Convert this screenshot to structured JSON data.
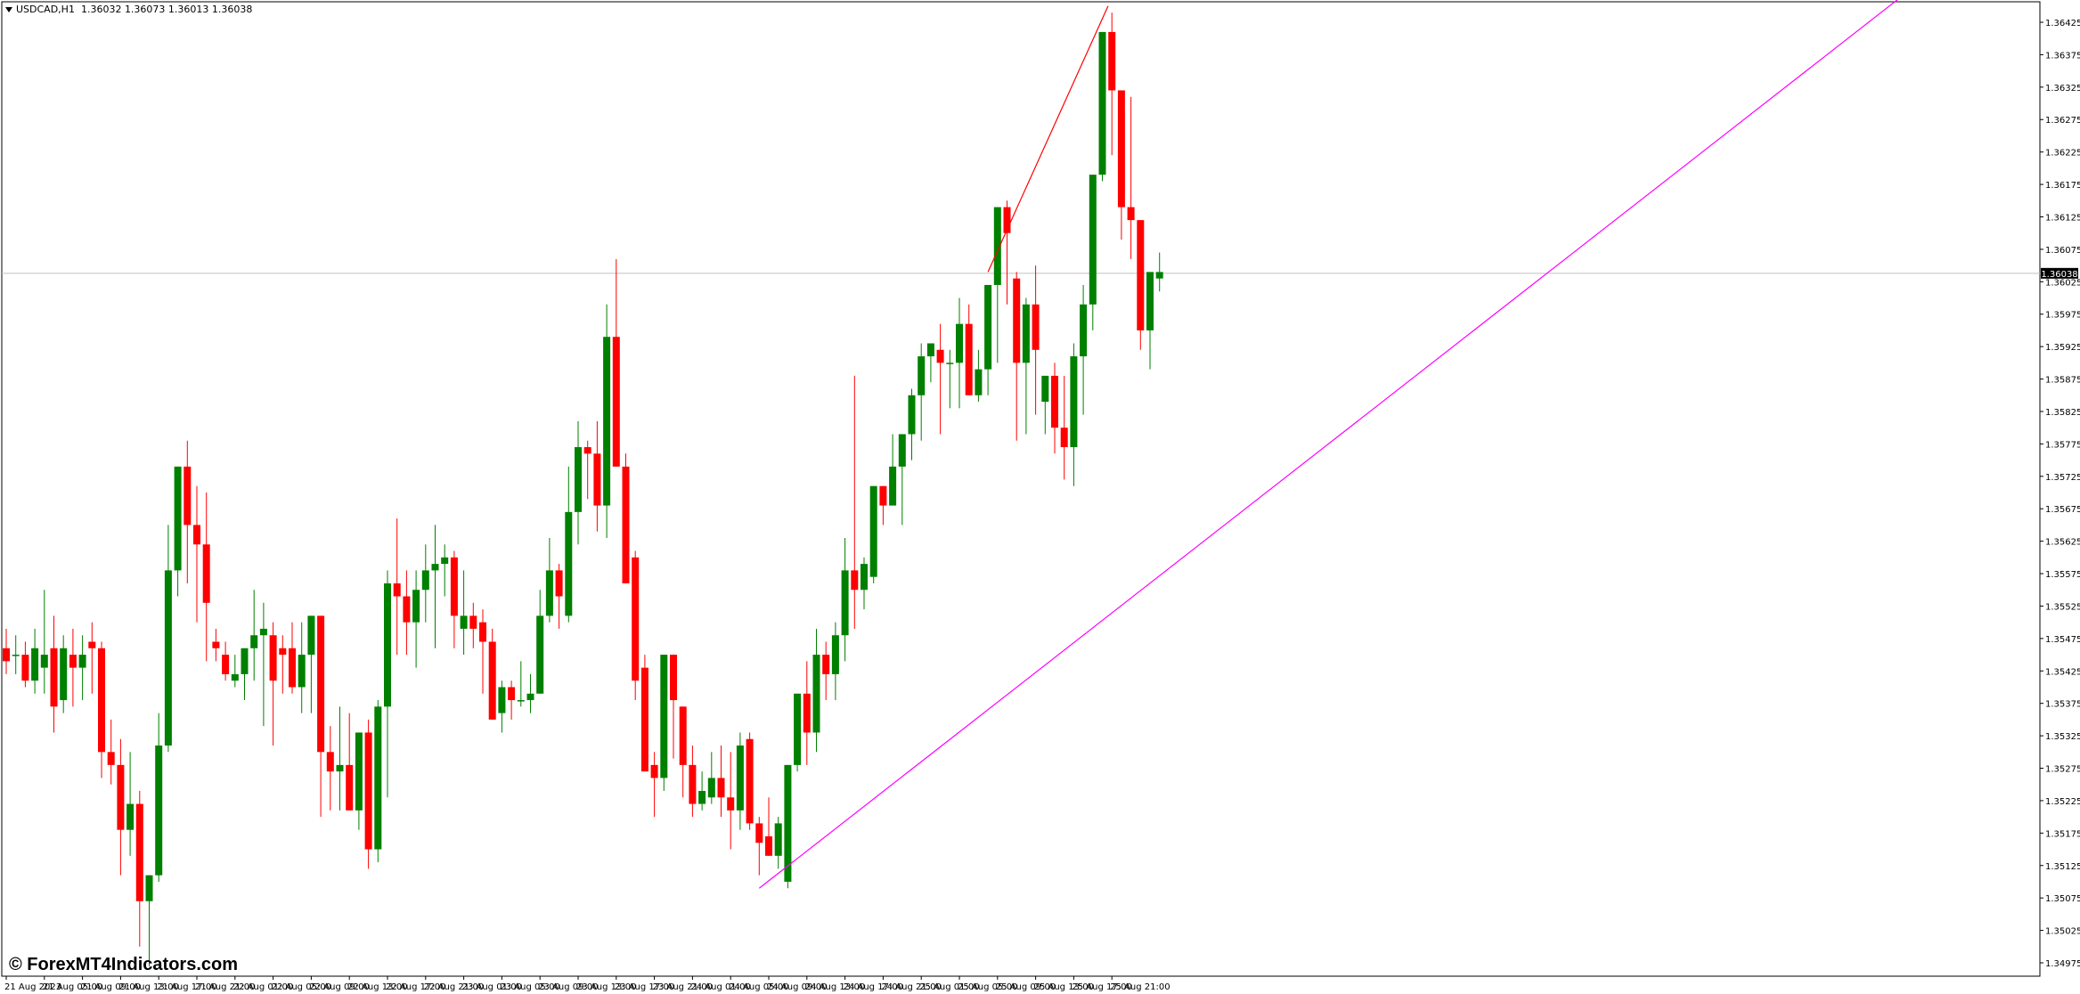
{
  "header": {
    "symbol_timeframe": "USDCAD,H1",
    "ohlc": "1.36032 1.36073 1.36013 1.36038"
  },
  "watermark": "© ForexMT4Indicators.com",
  "current_price_label": "1.36038",
  "colors": {
    "bull": "#008000",
    "bear": "#ff0000",
    "trendline_support": "#ff00ff",
    "trendline_steep": "#ff0000",
    "price_line": "#c0c0c0",
    "grid": "#000000",
    "background": "#ffffff"
  },
  "chart_data": {
    "type": "candlestick",
    "symbol": "USDCAD",
    "timeframe": "H1",
    "ylim": [
      1.3495,
      1.3645
    ],
    "y_ticks": [
      "1.36425",
      "1.36375",
      "1.36325",
      "1.36275",
      "1.36225",
      "1.36175",
      "1.36125",
      "1.36075",
      "1.36025",
      "1.35975",
      "1.35925",
      "1.35875",
      "1.35825",
      "1.35775",
      "1.35725",
      "1.35675",
      "1.35625",
      "1.35575",
      "1.35525",
      "1.35475",
      "1.35425",
      "1.35375",
      "1.35325",
      "1.35275",
      "1.35225",
      "1.35175",
      "1.35125",
      "1.35075",
      "1.35025",
      "1.34975"
    ],
    "x_ticks": [
      "21 Aug 2023",
      "21 Aug 05:00",
      "21 Aug 09:00",
      "21 Aug 13:00",
      "21 Aug 17:00",
      "21 Aug 21:00",
      "22 Aug 01:00",
      "22 Aug 05:00",
      "22 Aug 09:00",
      "22 Aug 13:00",
      "22 Aug 17:00",
      "22 Aug 21:00",
      "23 Aug 01:00",
      "23 Aug 05:00",
      "23 Aug 09:00",
      "23 Aug 13:00",
      "23 Aug 17:00",
      "23 Aug 21:00",
      "24 Aug 01:00",
      "24 Aug 05:00",
      "24 Aug 09:00",
      "24 Aug 13:00",
      "24 Aug 17:00",
      "24 Aug 21:00",
      "25 Aug 01:00",
      "25 Aug 05:00",
      "25 Aug 09:00",
      "25 Aug 13:00",
      "25 Aug 17:00",
      "25 Aug 21:00"
    ],
    "x_tick_candle_index": [
      0,
      4,
      8,
      12,
      16,
      20,
      24,
      28,
      32,
      36,
      40,
      44,
      48,
      52,
      56,
      60,
      64,
      68,
      72,
      76,
      80,
      84,
      88,
      92,
      96,
      100,
      104,
      108,
      112,
      116
    ],
    "current_price": 1.36038,
    "candles_ohlc": [
      [
        1.3546,
        1.3549,
        1.3542,
        1.3544
      ],
      [
        1.3545,
        1.3548,
        1.3542,
        1.3545
      ],
      [
        1.3545,
        1.3547,
        1.354,
        1.3541
      ],
      [
        1.3541,
        1.3549,
        1.3539,
        1.3546
      ],
      [
        1.3543,
        1.3555,
        1.3539,
        1.3545
      ],
      [
        1.3546,
        1.3551,
        1.3533,
        1.3537
      ],
      [
        1.3538,
        1.3548,
        1.3536,
        1.3546
      ],
      [
        1.3545,
        1.3549,
        1.3537,
        1.3543
      ],
      [
        1.3543,
        1.3548,
        1.3538,
        1.3545
      ],
      [
        1.3547,
        1.355,
        1.3539,
        1.3546
      ],
      [
        1.3546,
        1.3547,
        1.3526,
        1.353
      ],
      [
        1.353,
        1.3535,
        1.3525,
        1.3528
      ],
      [
        1.3528,
        1.3532,
        1.3511,
        1.3518
      ],
      [
        1.3518,
        1.353,
        1.3514,
        1.3522
      ],
      [
        1.3522,
        1.3524,
        1.35,
        1.3507
      ],
      [
        1.3507,
        1.3511,
        1.3497,
        1.3511
      ],
      [
        1.3511,
        1.3536,
        1.351,
        1.3531
      ],
      [
        1.3531,
        1.3565,
        1.353,
        1.3558
      ],
      [
        1.3558,
        1.3573,
        1.3554,
        1.3574
      ],
      [
        1.3574,
        1.3578,
        1.3556,
        1.3565
      ],
      [
        1.3565,
        1.3571,
        1.355,
        1.3562
      ],
      [
        1.3562,
        1.357,
        1.3544,
        1.3553
      ],
      [
        1.3547,
        1.3549,
        1.3544,
        1.3546
      ],
      [
        1.3545,
        1.3547,
        1.3541,
        1.3542
      ],
      [
        1.3541,
        1.3545,
        1.354,
        1.3542
      ],
      [
        1.3542,
        1.3545,
        1.3538,
        1.3546
      ],
      [
        1.3546,
        1.3555,
        1.3541,
        1.3548
      ],
      [
        1.3548,
        1.3553,
        1.3534,
        1.3549
      ],
      [
        1.3548,
        1.355,
        1.3531,
        1.3541
      ],
      [
        1.3546,
        1.3548,
        1.3539,
        1.3545
      ],
      [
        1.3546,
        1.355,
        1.3539,
        1.354
      ],
      [
        1.354,
        1.355,
        1.3536,
        1.3545
      ],
      [
        1.3545,
        1.3551,
        1.3536,
        1.3551
      ],
      [
        1.3551,
        1.3551,
        1.352,
        1.353
      ],
      [
        1.353,
        1.3534,
        1.3521,
        1.3527
      ],
      [
        1.3527,
        1.3537,
        1.3521,
        1.3528
      ],
      [
        1.3528,
        1.3536,
        1.3521,
        1.3521
      ],
      [
        1.3521,
        1.3533,
        1.3518,
        1.3533
      ],
      [
        1.3533,
        1.3535,
        1.3512,
        1.3515
      ],
      [
        1.3515,
        1.3538,
        1.3513,
        1.3537
      ],
      [
        1.3537,
        1.3558,
        1.3523,
        1.3556
      ],
      [
        1.3556,
        1.3566,
        1.3545,
        1.3554
      ],
      [
        1.3554,
        1.3558,
        1.3545,
        1.355
      ],
      [
        1.355,
        1.3558,
        1.3543,
        1.3555
      ],
      [
        1.3555,
        1.3562,
        1.355,
        1.3558
      ],
      [
        1.3558,
        1.3565,
        1.3546,
        1.3559
      ],
      [
        1.3559,
        1.3562,
        1.3554,
        1.356
      ],
      [
        1.356,
        1.3561,
        1.3546,
        1.3551
      ],
      [
        1.3549,
        1.3558,
        1.3545,
        1.3551
      ],
      [
        1.3551,
        1.3553,
        1.3546,
        1.3549
      ],
      [
        1.355,
        1.3552,
        1.3539,
        1.3547
      ],
      [
        1.3547,
        1.3549,
        1.3535,
        1.3535
      ],
      [
        1.3536,
        1.3541,
        1.3533,
        1.354
      ],
      [
        1.354,
        1.3541,
        1.3535,
        1.3538
      ],
      [
        1.3538,
        1.3544,
        1.3537,
        1.3538
      ],
      [
        1.3538,
        1.3542,
        1.3536,
        1.3539
      ],
      [
        1.3539,
        1.3555,
        1.3539,
        1.3551
      ],
      [
        1.3551,
        1.3563,
        1.355,
        1.3558
      ],
      [
        1.3558,
        1.3559,
        1.3549,
        1.3554
      ],
      [
        1.3551,
        1.3574,
        1.355,
        1.3567
      ],
      [
        1.3567,
        1.3581,
        1.3562,
        1.3577
      ],
      [
        1.3577,
        1.3578,
        1.3569,
        1.3576
      ],
      [
        1.3576,
        1.3581,
        1.3564,
        1.3568
      ],
      [
        1.3568,
        1.3599,
        1.3563,
        1.3594
      ],
      [
        1.3594,
        1.3606,
        1.3586,
        1.3574
      ],
      [
        1.3574,
        1.3576,
        1.3556,
        1.3556
      ],
      [
        1.356,
        1.3561,
        1.3538,
        1.3541
      ],
      [
        1.3543,
        1.3545,
        1.3527,
        1.3527
      ],
      [
        1.3528,
        1.353,
        1.352,
        1.3526
      ],
      [
        1.3526,
        1.3544,
        1.3524,
        1.3545
      ],
      [
        1.3545,
        1.3545,
        1.3529,
        1.3538
      ],
      [
        1.3537,
        1.3537,
        1.3523,
        1.3528
      ],
      [
        1.3528,
        1.3531,
        1.352,
        1.3522
      ],
      [
        1.3522,
        1.3527,
        1.3521,
        1.3524
      ],
      [
        1.3523,
        1.353,
        1.3522,
        1.3526
      ],
      [
        1.3526,
        1.3531,
        1.352,
        1.3523
      ],
      [
        1.3523,
        1.353,
        1.3515,
        1.3521
      ],
      [
        1.3521,
        1.3533,
        1.3518,
        1.3531
      ],
      [
        1.3532,
        1.3533,
        1.3518,
        1.3519
      ],
      [
        1.3519,
        1.352,
        1.3511,
        1.3516
      ],
      [
        1.3517,
        1.3523,
        1.3514,
        1.3514
      ],
      [
        1.3514,
        1.352,
        1.3512,
        1.3519
      ],
      [
        1.351,
        1.3528,
        1.3509,
        1.3528
      ],
      [
        1.3528,
        1.3539,
        1.3527,
        1.3539
      ],
      [
        1.3539,
        1.3544,
        1.3528,
        1.3533
      ],
      [
        1.3533,
        1.3549,
        1.353,
        1.3545
      ],
      [
        1.3545,
        1.3547,
        1.3538,
        1.3542
      ],
      [
        1.3542,
        1.355,
        1.3538,
        1.3548
      ],
      [
        1.3548,
        1.3563,
        1.3544,
        1.3558
      ],
      [
        1.3558,
        1.3588,
        1.3549,
        1.3555
      ],
      [
        1.3555,
        1.356,
        1.3552,
        1.3559
      ],
      [
        1.3557,
        1.3569,
        1.3556,
        1.3571
      ],
      [
        1.3571,
        1.3571,
        1.3565,
        1.3568
      ],
      [
        1.3568,
        1.3579,
        1.3568,
        1.3574
      ],
      [
        1.3574,
        1.3578,
        1.3565,
        1.3579
      ],
      [
        1.3579,
        1.3586,
        1.3575,
        1.3585
      ],
      [
        1.3585,
        1.3593,
        1.3578,
        1.3591
      ],
      [
        1.3591,
        1.3593,
        1.3587,
        1.3593
      ],
      [
        1.3592,
        1.3596,
        1.3579,
        1.359
      ],
      [
        1.359,
        1.3592,
        1.3583,
        1.359
      ],
      [
        1.359,
        1.36,
        1.3583,
        1.3596
      ],
      [
        1.3596,
        1.3599,
        1.3586,
        1.3585
      ],
      [
        1.3585,
        1.3592,
        1.3584,
        1.3589
      ],
      [
        1.3589,
        1.3602,
        1.3585,
        1.3602
      ],
      [
        1.3602,
        1.3606,
        1.359,
        1.3614
      ],
      [
        1.3614,
        1.3615,
        1.3599,
        1.361
      ],
      [
        1.3603,
        1.3604,
        1.3578,
        1.359
      ],
      [
        1.359,
        1.36,
        1.3579,
        1.3599
      ],
      [
        1.3599,
        1.3605,
        1.3582,
        1.3592
      ],
      [
        1.3584,
        1.3587,
        1.3579,
        1.3588
      ],
      [
        1.3588,
        1.359,
        1.3576,
        1.358
      ],
      [
        1.358,
        1.3588,
        1.3572,
        1.3577
      ],
      [
        1.3577,
        1.3593,
        1.3571,
        1.3591
      ],
      [
        1.3591,
        1.3602,
        1.3582,
        1.3599
      ],
      [
        1.3599,
        1.3615,
        1.3595,
        1.3619
      ],
      [
        1.3619,
        1.364,
        1.3618,
        1.3641
      ],
      [
        1.3641,
        1.3644,
        1.3622,
        1.3632
      ],
      [
        1.3632,
        1.3632,
        1.3609,
        1.3614
      ],
      [
        1.3614,
        1.3631,
        1.3606,
        1.3612
      ],
      [
        1.3612,
        1.3612,
        1.3592,
        1.3595
      ],
      [
        1.3595,
        1.3604,
        1.3589,
        1.3604
      ],
      [
        1.3603,
        1.3607,
        1.3601,
        1.3604
      ]
    ]
  }
}
